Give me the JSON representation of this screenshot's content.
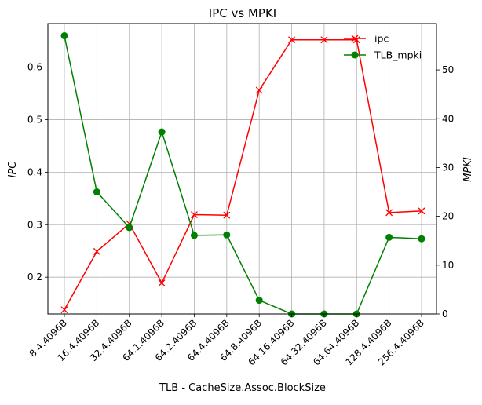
{
  "chart_data": {
    "type": "line",
    "title": "IPC vs MPKI",
    "xlabel": "TLB - CacheSize.Assoc.BlockSize",
    "ylabel_left": "IPC",
    "ylabel_right": "MPKI",
    "categories": [
      "8.4.4096B",
      "16.4.4096B",
      "32.4.4096B",
      "64.1.4096B",
      "64.2.4096B",
      "64.4.4096B",
      "64.8.4096B",
      "64.16.4096B",
      "64.32.4096B",
      "64.64.4096B",
      "128.4.4096B",
      "256.4.4096B"
    ],
    "left_axis": {
      "ylim": [
        0.13,
        0.683
      ],
      "ticks": [
        0.2,
        0.3,
        0.4,
        0.5,
        0.6
      ],
      "tick_labels": [
        "0.2",
        "0.3",
        "0.4",
        "0.5",
        "0.6"
      ]
    },
    "right_axis": {
      "ylim": [
        0,
        59.5
      ],
      "ticks": [
        0,
        10,
        20,
        30,
        40,
        50
      ],
      "tick_labels": [
        "0",
        "10",
        "20",
        "30",
        "40",
        "50"
      ]
    },
    "grid": true,
    "legend_placement": "top-right",
    "series": [
      {
        "name": "ipc",
        "axis": "left",
        "color": "#ff0000",
        "marker": "x",
        "values": [
          0.138,
          0.249,
          0.302,
          0.189,
          0.319,
          0.318,
          0.556,
          0.652,
          0.652,
          0.652,
          0.323,
          0.326
        ]
      },
      {
        "name": "TLB_mpki",
        "axis": "right",
        "color": "#008000",
        "marker": "o",
        "values": [
          57.0,
          25.0,
          17.7,
          37.3,
          16.1,
          16.2,
          2.8,
          0.0,
          0.0,
          0.0,
          15.7,
          15.4
        ]
      }
    ]
  }
}
